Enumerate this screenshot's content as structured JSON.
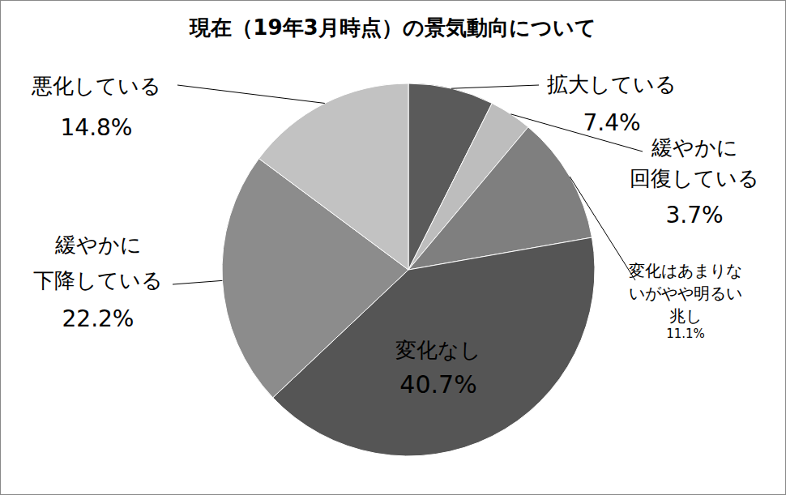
{
  "chart_data": {
    "type": "pie",
    "title": "現在（19年3月時点）の景気動向について",
    "categories": [
      "拡大している",
      "緩やかに\n回復している",
      "変化はあまりな\nいがやや明るい\n兆し",
      "変化なし",
      "緩やかに\n下降している",
      "悪化している"
    ],
    "values": [
      7.4,
      3.7,
      11.1,
      40.7,
      22.2,
      14.8
    ],
    "value_labels": [
      "7.4%",
      "3.7%",
      "11.1%",
      "40.7%",
      "22.2%",
      "14.8%"
    ],
    "colors": [
      "#5a5a5a",
      "#bdbdbd",
      "#7f7f7f",
      "#555555",
      "#8c8c8c",
      "#c2c2c2"
    ],
    "data_labels": true
  }
}
